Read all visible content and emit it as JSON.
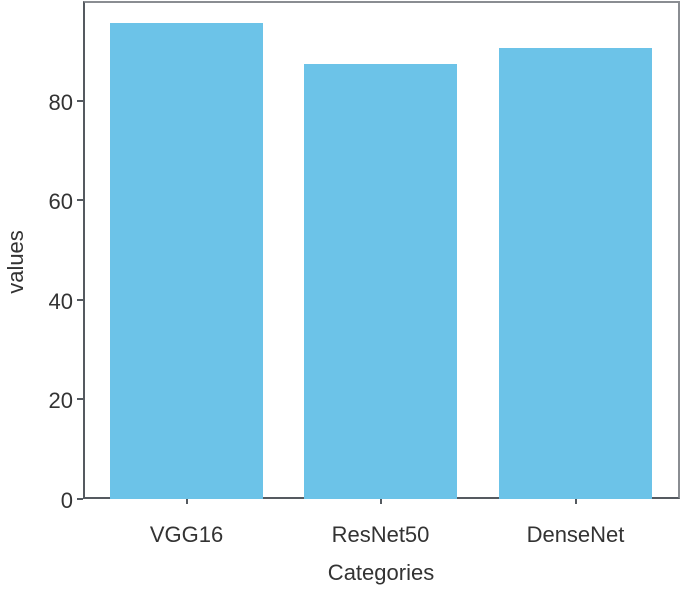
{
  "chart_data": {
    "type": "bar",
    "title": "",
    "xlabel": "Categories",
    "ylabel": "values",
    "categories": [
      "VGG16",
      "ResNet50",
      "DenseNet"
    ],
    "values": [
      95.5,
      87.3,
      90.5
    ],
    "ylim": [
      0,
      100
    ],
    "yticks": [
      0,
      20,
      40,
      60,
      80
    ],
    "grid": false,
    "legend": null,
    "bar_color": "#6cc3e8"
  },
  "labels": {
    "xlabel": "Categories",
    "ylabel": "values",
    "yticks": [
      "0",
      "20",
      "40",
      "60",
      "80"
    ],
    "categories": [
      "VGG16",
      "ResNet50",
      "DenseNet"
    ]
  }
}
